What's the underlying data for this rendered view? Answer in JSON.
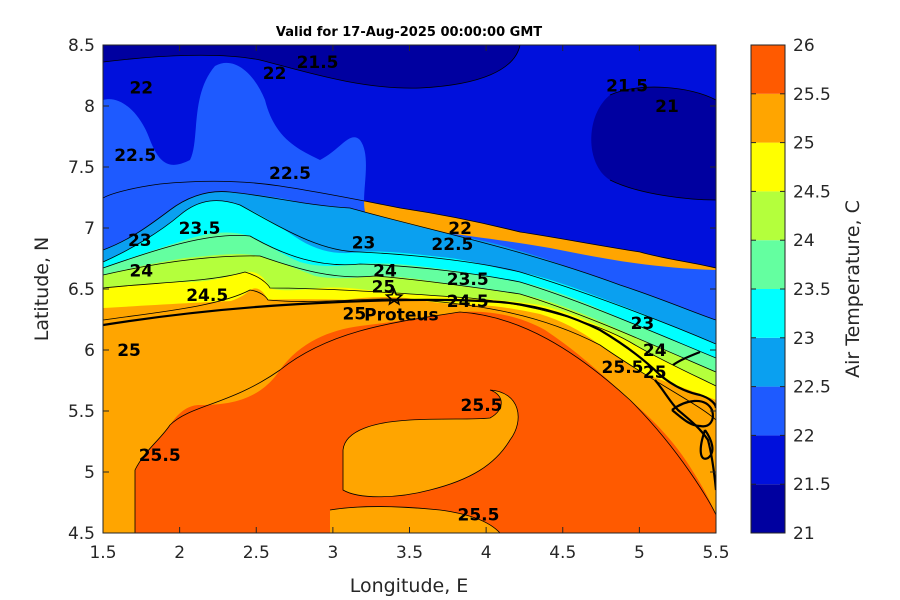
{
  "chart_data": {
    "type": "heatmap",
    "title": "Valid for 17-Aug-2025 00:00:00 GMT",
    "xlabel": "Longitude, E",
    "ylabel": "Latitude, N",
    "xlim": [
      1.5,
      5.5
    ],
    "ylim": [
      4.5,
      8.5
    ],
    "xticks": [
      "1.5",
      "2",
      "2.5",
      "3",
      "3.5",
      "4",
      "4.5",
      "5",
      "5.5"
    ],
    "yticks": [
      "4.5",
      "5",
      "5.5",
      "6",
      "6.5",
      "7",
      "7.5",
      "8",
      "8.5"
    ],
    "colorbar": {
      "label": "Air Temperature, C",
      "ticks": [
        "21",
        "21.5",
        "22",
        "22.5",
        "23",
        "23.5",
        "24",
        "24.5",
        "25",
        "25.5",
        "26"
      ],
      "range": [
        21,
        26
      ],
      "levels": [
        21,
        21.5,
        22,
        22.5,
        23,
        23.5,
        24,
        24.5,
        25,
        25.5,
        26
      ],
      "colors": [
        "#0000a0",
        "#0010dc",
        "#1e5aff",
        "#0aa0f0",
        "#00ffff",
        "#64ffa0",
        "#b4ff3c",
        "#ffff00",
        "#ffa500",
        "#ff5a00",
        "#ff0000"
      ]
    },
    "contour_labels": [
      {
        "text": "22",
        "lon": 1.75,
        "lat": 8.15
      },
      {
        "text": "22",
        "lon": 2.62,
        "lat": 8.27
      },
      {
        "text": "21.5",
        "lon": 2.9,
        "lat": 8.36
      },
      {
        "text": "21.5",
        "lon": 4.92,
        "lat": 8.17
      },
      {
        "text": "21",
        "lon": 5.18,
        "lat": 8.0
      },
      {
        "text": "22.5",
        "lon": 1.71,
        "lat": 7.6
      },
      {
        "text": "22.5",
        "lon": 2.72,
        "lat": 7.45
      },
      {
        "text": "22",
        "lon": 3.83,
        "lat": 7.0
      },
      {
        "text": "23",
        "lon": 1.74,
        "lat": 6.9
      },
      {
        "text": "23.5",
        "lon": 2.13,
        "lat": 7.0
      },
      {
        "text": "23",
        "lon": 3.2,
        "lat": 6.88
      },
      {
        "text": "22.5",
        "lon": 3.78,
        "lat": 6.87
      },
      {
        "text": "24",
        "lon": 1.75,
        "lat": 6.65
      },
      {
        "text": "24",
        "lon": 3.34,
        "lat": 6.65
      },
      {
        "text": "23.5",
        "lon": 3.88,
        "lat": 6.58
      },
      {
        "text": "24.5",
        "lon": 2.18,
        "lat": 6.45
      },
      {
        "text": "25",
        "lon": 3.33,
        "lat": 6.52
      },
      {
        "text": "24.5",
        "lon": 3.88,
        "lat": 6.4
      },
      {
        "text": "25",
        "lon": 3.14,
        "lat": 6.3
      },
      {
        "text": "23",
        "lon": 5.02,
        "lat": 6.22
      },
      {
        "text": "24",
        "lon": 5.1,
        "lat": 6.0
      },
      {
        "text": "25",
        "lon": 5.1,
        "lat": 5.82
      },
      {
        "text": "25.5",
        "lon": 4.89,
        "lat": 5.86
      },
      {
        "text": "25",
        "lon": 1.67,
        "lat": 6.0
      },
      {
        "text": "25.5",
        "lon": 3.97,
        "lat": 5.55
      },
      {
        "text": "25.5",
        "lon": 1.87,
        "lat": 5.14
      },
      {
        "text": "25.5",
        "lon": 3.95,
        "lat": 4.65
      }
    ],
    "station": {
      "name": "Proteus",
      "lon": 3.4,
      "lat": 6.43
    }
  }
}
